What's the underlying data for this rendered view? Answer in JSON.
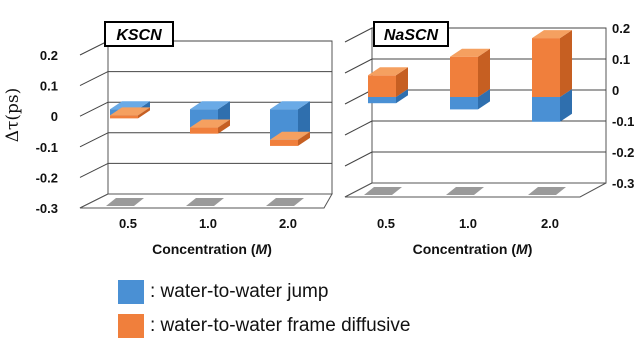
{
  "chart_data": [
    {
      "type": "bar",
      "stacked": true,
      "three_d": true,
      "title": "KSCN",
      "xlabel": "Concentration (M)",
      "ylabel": "Δτ(ps)",
      "categories": [
        "0.5",
        "1.0",
        "2.0"
      ],
      "ylim": [
        -0.3,
        0.2
      ],
      "yticks": [
        "0.2",
        "0.1",
        "0",
        "-0.1",
        "-0.2",
        "-0.3"
      ],
      "y_axis_side": "left",
      "series": [
        {
          "name": "water-to-water jump",
          "values": [
            -0.02,
            -0.06,
            -0.1
          ]
        },
        {
          "name": "water-to-water frame diffusive",
          "values": [
            -0.01,
            -0.02,
            -0.02
          ]
        }
      ]
    },
    {
      "type": "bar",
      "stacked": true,
      "three_d": true,
      "title": "NaSCN",
      "xlabel": "Concentration (M)",
      "ylabel": "",
      "categories": [
        "0.5",
        "1.0",
        "2.0"
      ],
      "ylim": [
        -0.3,
        0.2
      ],
      "yticks": [
        "0.2",
        "0.1",
        "0",
        "-0.1",
        "-0.2",
        "-0.3"
      ],
      "y_axis_side": "right",
      "series": [
        {
          "name": "water-to-water jump",
          "values": [
            -0.02,
            -0.04,
            -0.08
          ]
        },
        {
          "name": "water-to-water frame diffusive",
          "values": [
            0.07,
            0.13,
            0.19
          ]
        }
      ]
    }
  ],
  "legend": {
    "items": [
      {
        "label": ":  water-to-water jump",
        "color": "#4a90d4"
      },
      {
        "label": ":  water-to-water frame diffusive",
        "color": "#f07f3c"
      }
    ]
  },
  "colors": {
    "jump_front": "#4a90d4",
    "jump_top": "#6aaae6",
    "jump_side": "#2f6fae",
    "diff_front": "#f07f3c",
    "diff_top": "#f5a060",
    "diff_side": "#c65f22",
    "floor": "#9a9a9a"
  }
}
